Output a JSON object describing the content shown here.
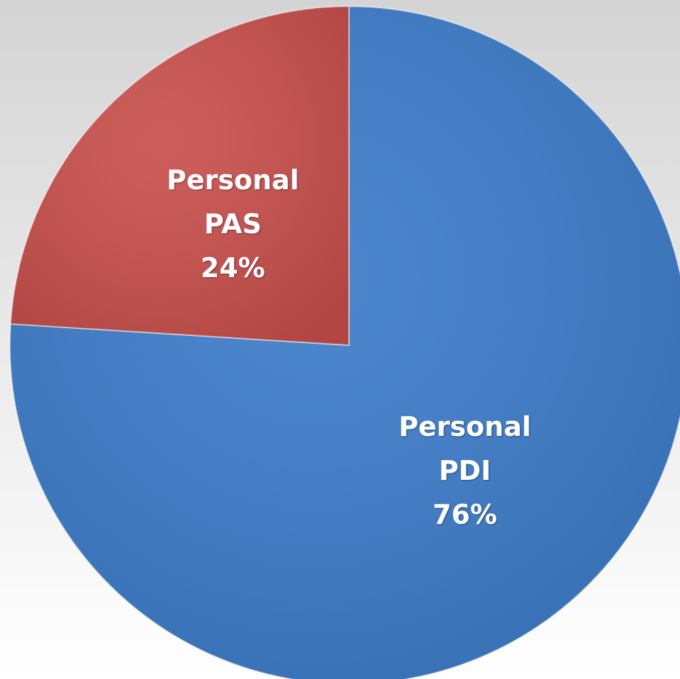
{
  "chart_data": {
    "type": "pie",
    "categories": [
      "Personal PDI",
      "Personal PAS"
    ],
    "values": [
      76,
      24
    ],
    "value_labels": [
      "76%",
      "24%"
    ],
    "colors": [
      "#3d7cca",
      "#c9504d"
    ]
  }
}
